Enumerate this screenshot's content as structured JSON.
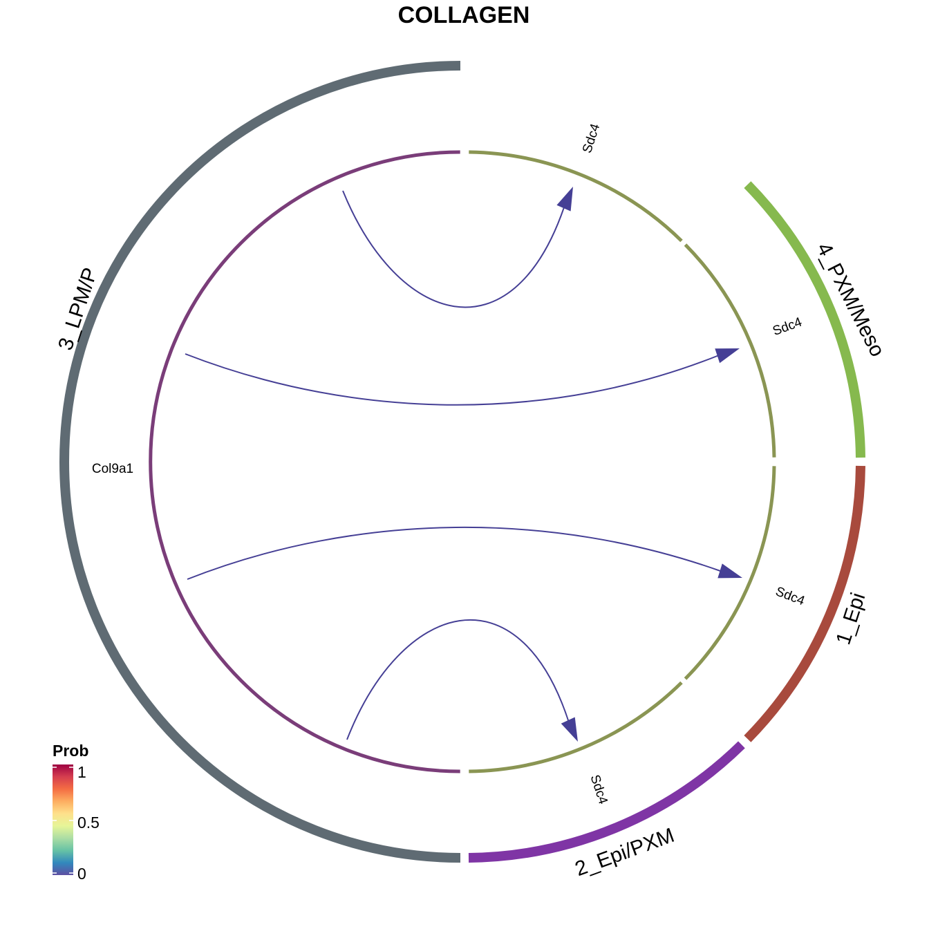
{
  "title": "COLLAGEN",
  "outer_groups": [
    {
      "label": "3_LPM/P",
      "color": "#5f6b73"
    },
    {
      "label": "4_PXM/Meso",
      "color": "#86b94e"
    },
    {
      "label": "1_Epi",
      "color": "#a84a3d"
    },
    {
      "label": "2_Epi/PXM",
      "color": "#7f35a5"
    }
  ],
  "inner_sectors": [
    {
      "name": "sender",
      "color": "#7a3d79"
    },
    {
      "name": "receiver",
      "color": "#8a9553"
    }
  ],
  "genes": [
    {
      "label": "Col9a1"
    },
    {
      "label": "Sdc4"
    },
    {
      "label": "Sdc4"
    },
    {
      "label": "Sdc4"
    },
    {
      "label": "Sdc4"
    }
  ],
  "links": [
    {
      "source": "Col9a1",
      "target_group": "3_LPM/P",
      "prob": 0.02
    },
    {
      "source": "Col9a1",
      "target_group": "4_PXM/Meso",
      "prob": 0.02
    },
    {
      "source": "Col9a1",
      "target_group": "1_Epi",
      "prob": 0.02
    },
    {
      "source": "Col9a1",
      "target_group": "2_Epi/PXM",
      "prob": 0.02
    }
  ],
  "link_color": "#453f95",
  "legend": {
    "title": "Prob",
    "ticks": [
      "1",
      "0.5",
      "0"
    ],
    "colors": [
      "#9e0142",
      "#d53e4f",
      "#f46d43",
      "#fdae61",
      "#fee08b",
      "#e6f598",
      "#abdda4",
      "#66c2a5",
      "#3288bd",
      "#5e4fa2"
    ]
  }
}
